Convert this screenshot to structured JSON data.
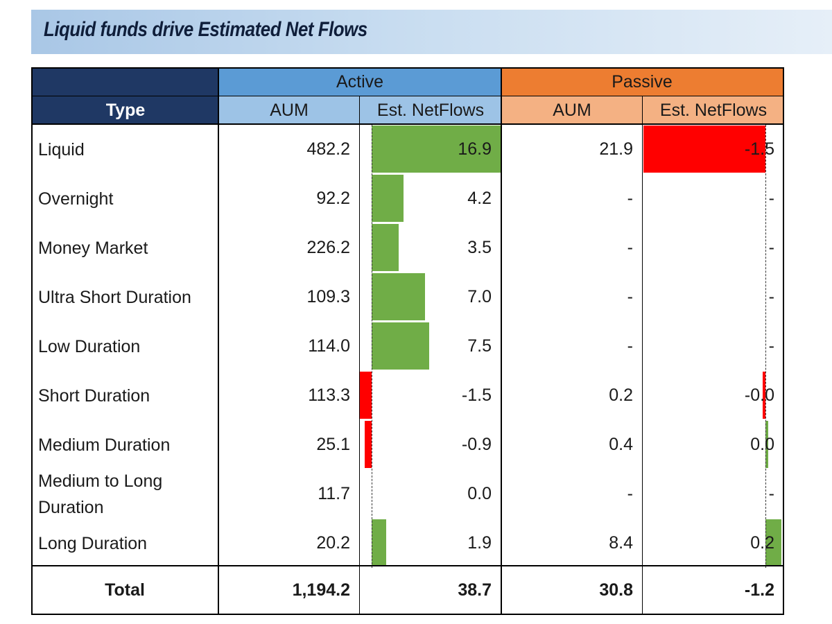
{
  "title": "Liquid funds drive Estimated Net Flows",
  "headers": {
    "type": "Type",
    "active": "Active",
    "passive": "Passive",
    "aum": "AUM",
    "netflows": "Est. NetFlows"
  },
  "colors": {
    "positive": "#70ad47",
    "negative": "#ff0000",
    "header_navy": "#1f3864",
    "active_group": "#5b9bd5",
    "active_sub": "#9dc3e6",
    "passive_group": "#ed7d31",
    "passive_sub": "#f4b183"
  },
  "chart_data": {
    "type": "table",
    "columns": [
      "Type",
      "Active AUM",
      "Active Est. NetFlows",
      "Passive AUM",
      "Passive Est. NetFlows"
    ],
    "rows": [
      {
        "type": "Liquid",
        "active_aum": "482.2",
        "active_flow": "16.9",
        "active_flow_value": 16.9,
        "passive_aum": "21.9",
        "passive_flow": "-1.5",
        "passive_flow_value": -1.5
      },
      {
        "type": "Overnight",
        "active_aum": "92.2",
        "active_flow": "4.2",
        "active_flow_value": 4.2,
        "passive_aum": "-",
        "passive_flow": "-",
        "passive_flow_value": null
      },
      {
        "type": "Money Market",
        "active_aum": "226.2",
        "active_flow": "3.5",
        "active_flow_value": 3.5,
        "passive_aum": "-",
        "passive_flow": "-",
        "passive_flow_value": null
      },
      {
        "type": "Ultra Short Duration",
        "active_aum": "109.3",
        "active_flow": "7.0",
        "active_flow_value": 7.0,
        "passive_aum": "-",
        "passive_flow": "-",
        "passive_flow_value": null
      },
      {
        "type": "Low Duration",
        "active_aum": "114.0",
        "active_flow": "7.5",
        "active_flow_value": 7.5,
        "passive_aum": "-",
        "passive_flow": "-",
        "passive_flow_value": null
      },
      {
        "type": "Short Duration",
        "active_aum": "113.3",
        "active_flow": "-1.5",
        "active_flow_value": -1.5,
        "passive_aum": "0.2",
        "passive_flow": "-0.0",
        "passive_flow_value": -0.01
      },
      {
        "type": "Medium Duration",
        "active_aum": "25.1",
        "active_flow": "-0.9",
        "active_flow_value": -0.9,
        "passive_aum": "0.4",
        "passive_flow": "0.0",
        "passive_flow_value": 0.02
      },
      {
        "type": "Medium to Long Duration",
        "active_aum": "11.7",
        "active_flow": "0.0",
        "active_flow_value": 0.0,
        "passive_aum": "-",
        "passive_flow": "-",
        "passive_flow_value": null
      },
      {
        "type": "Long Duration",
        "active_aum": "20.2",
        "active_flow": "1.9",
        "active_flow_value": 1.9,
        "passive_aum": "8.4",
        "passive_flow": "0.2",
        "passive_flow_value": 0.2
      }
    ],
    "total": {
      "type": "Total",
      "active_aum": "1,194.2",
      "active_flow": "38.7",
      "passive_aum": "30.8",
      "passive_flow": "-1.2"
    }
  }
}
